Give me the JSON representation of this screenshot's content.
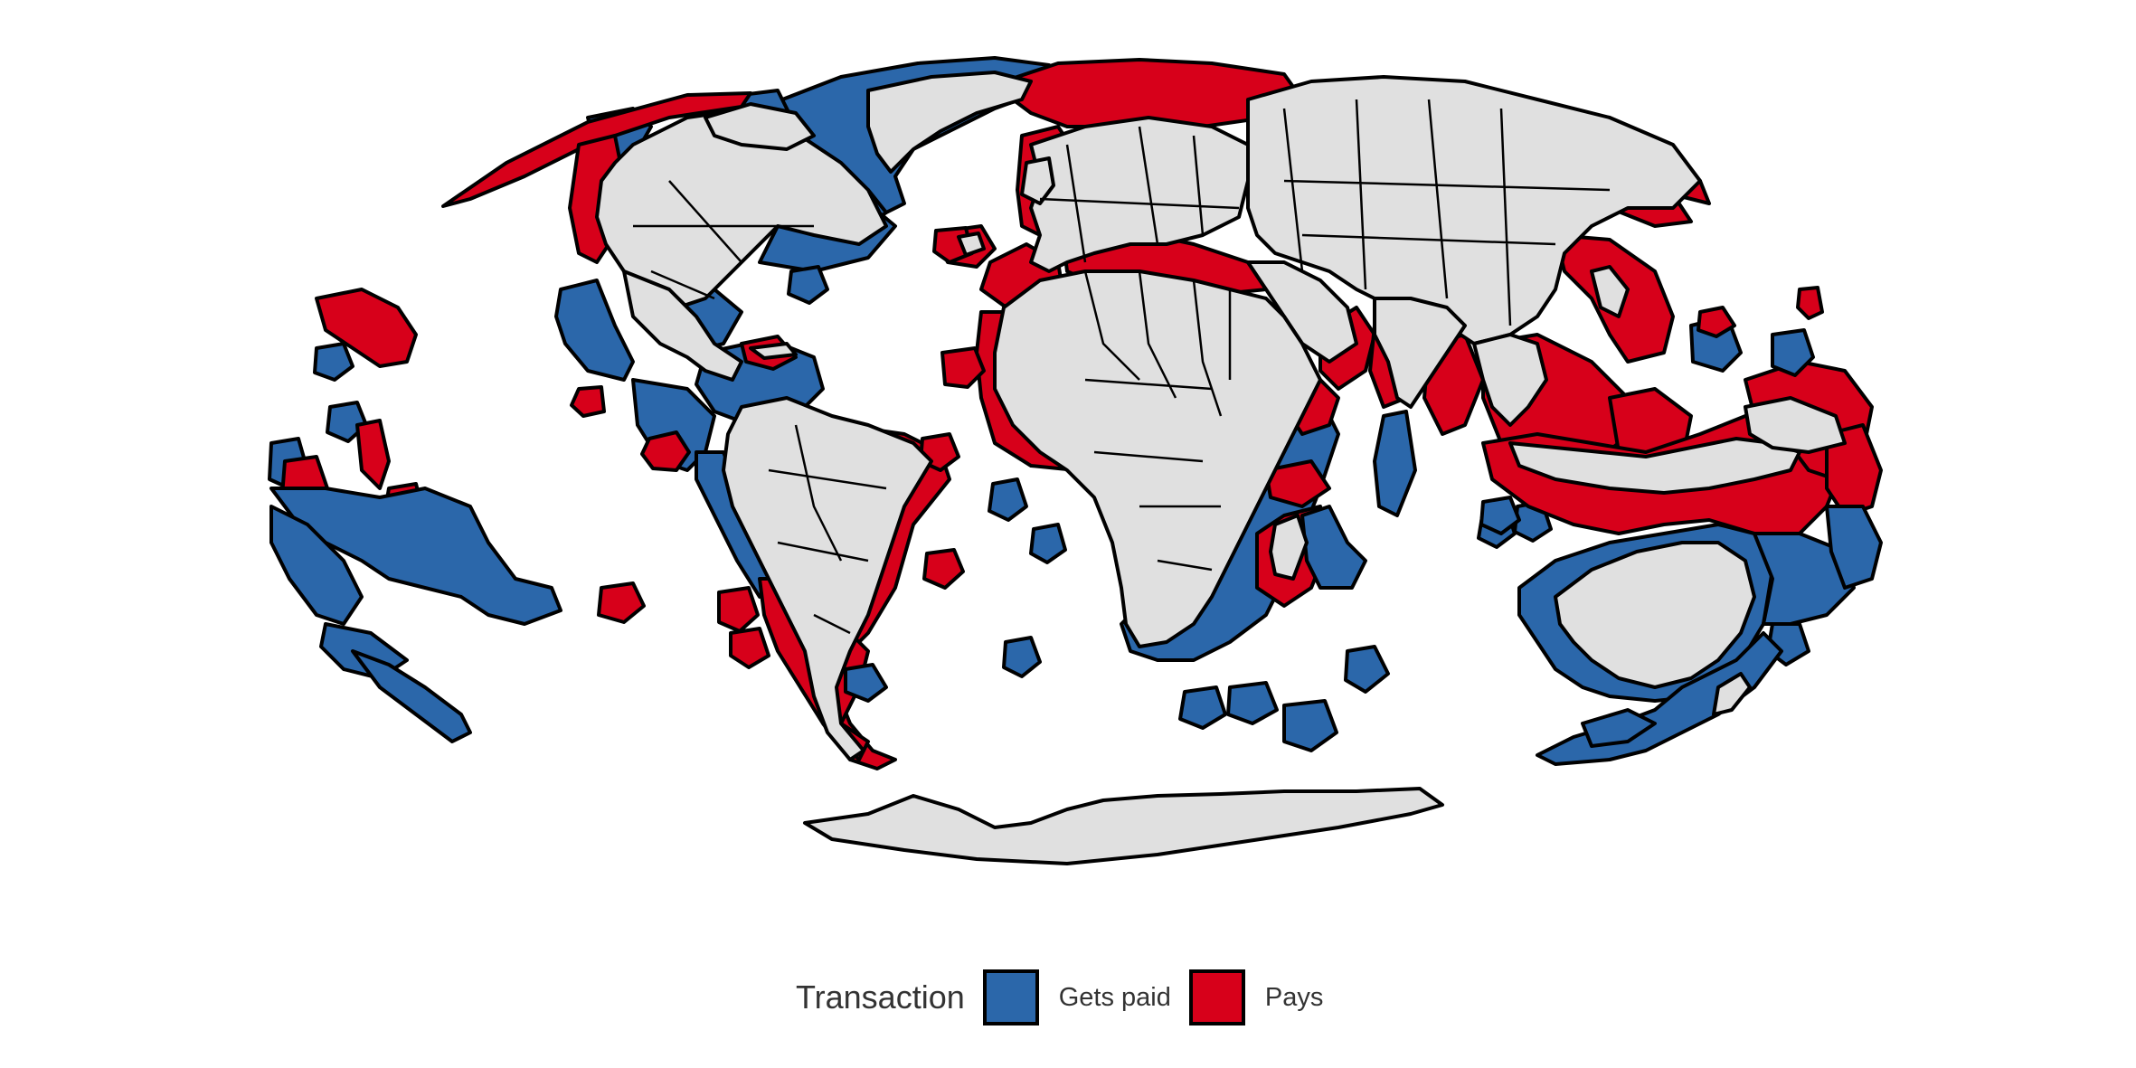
{
  "colors": {
    "gets_paid": "#2b67aa",
    "pays": "#d7001a",
    "land": "#e0e0e0",
    "border": "#000000"
  },
  "legend": {
    "title": "Transaction",
    "items": [
      {
        "label": "Gets paid",
        "color": "#2b67aa"
      },
      {
        "label": "Pays",
        "color": "#d7001a"
      }
    ]
  }
}
